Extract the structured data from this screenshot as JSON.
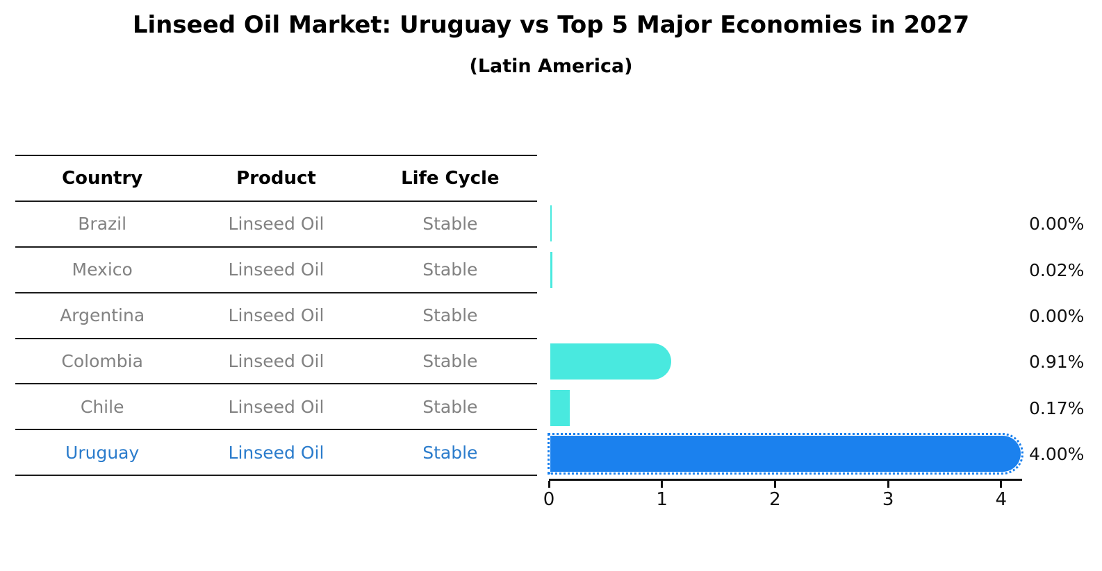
{
  "header": {
    "title": "Linseed Oil Market: Uruguay vs Top 5 Major Economies in 2027",
    "subtitle": "(Latin America)"
  },
  "table": {
    "columns": [
      "Country",
      "Product",
      "Life Cycle"
    ],
    "rows": [
      {
        "country": "Brazil",
        "product": "Linseed Oil",
        "life_cycle": "Stable",
        "highlight": false
      },
      {
        "country": "Mexico",
        "product": "Linseed Oil",
        "life_cycle": "Stable",
        "highlight": false
      },
      {
        "country": "Argentina",
        "product": "Linseed Oil",
        "life_cycle": "Stable",
        "highlight": false
      },
      {
        "country": "Colombia",
        "product": "Linseed Oil",
        "life_cycle": "Stable",
        "highlight": false
      },
      {
        "country": "Chile",
        "product": "Linseed Oil",
        "life_cycle": "Stable",
        "highlight": false
      },
      {
        "country": "Uruguay",
        "product": "Linseed Oil",
        "life_cycle": "Stable",
        "highlight": true
      }
    ]
  },
  "chart_data": {
    "type": "bar",
    "orientation": "horizontal",
    "title": "Linseed Oil Market: Uruguay vs Top 5 Major Economies in 2027",
    "subtitle": "(Latin America)",
    "categories": [
      "Brazil",
      "Mexico",
      "Argentina",
      "Colombia",
      "Chile",
      "Uruguay"
    ],
    "values": [
      0.005,
      0.02,
      0.0,
      0.91,
      0.17,
      4.0
    ],
    "value_labels": [
      "0.00%",
      "0.02%",
      "0.00%",
      "0.91%",
      "0.17%",
      "4.00%"
    ],
    "highlight_index": 5,
    "x_ticks": [
      "0",
      "1",
      "2",
      "3",
      "4"
    ],
    "xlim": [
      0,
      4.2
    ],
    "grid": false,
    "legend": "none",
    "colors": {
      "bar_default": "#49e9df",
      "bar_highlight": "#1b81ee",
      "highlight_text": "#2b7ccc",
      "row_text": "#828282",
      "axis_text": "#111111"
    }
  }
}
